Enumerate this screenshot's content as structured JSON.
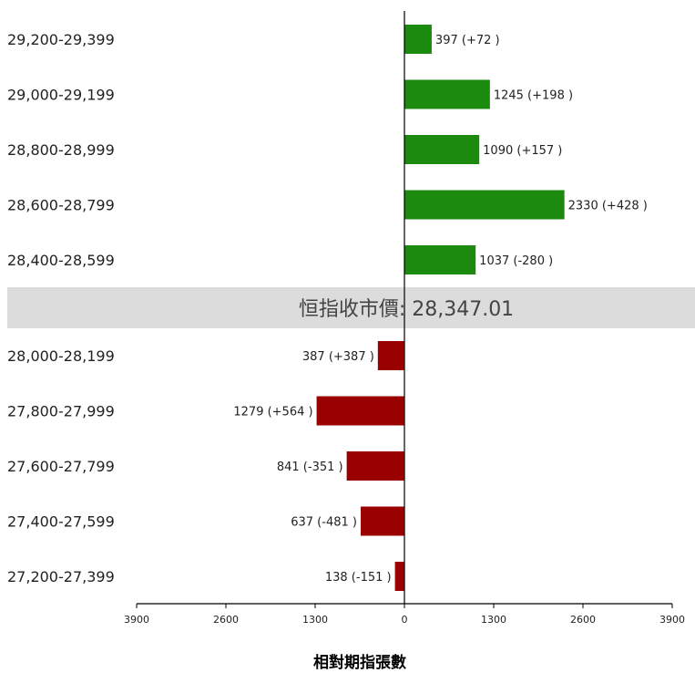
{
  "chart_data": {
    "type": "bar",
    "orientation": "horizontal-diverging",
    "categories_upper": [
      "29,200-29,399",
      "29,000-29,199",
      "28,800-28,999",
      "28,600-28,799",
      "28,400-28,599"
    ],
    "categories_lower": [
      "28,000-28,199",
      "27,800-27,999",
      "27,600-27,799",
      "27,400-27,599",
      "27,200-27,399"
    ],
    "series": [
      {
        "direction": "right",
        "color": "#1b8a0f",
        "values": [
          397,
          1245,
          1090,
          2330,
          1037
        ],
        "labels": [
          "397 (+72 )",
          "1245 (+198 )",
          "1090 (+157 )",
          "2330 (+428 )",
          "1037 (-280 )"
        ]
      },
      {
        "direction": "left",
        "color": "#9b0000",
        "values": [
          387,
          1279,
          841,
          637,
          138
        ],
        "labels": [
          "387 (+387 )",
          "1279 (+564 )",
          "841 (-351 )",
          "637 (-481 )",
          "138 (-151 )"
        ]
      }
    ],
    "separator_text": "恒指收市價: 28,347.01",
    "separator_color": "#dcdcdc",
    "x_ticks": [
      "3900",
      "2600",
      "1300",
      "0",
      "1300",
      "2600",
      "3900"
    ],
    "xlim": [
      -3900,
      3900
    ],
    "xlabel": "相對期指張數"
  }
}
